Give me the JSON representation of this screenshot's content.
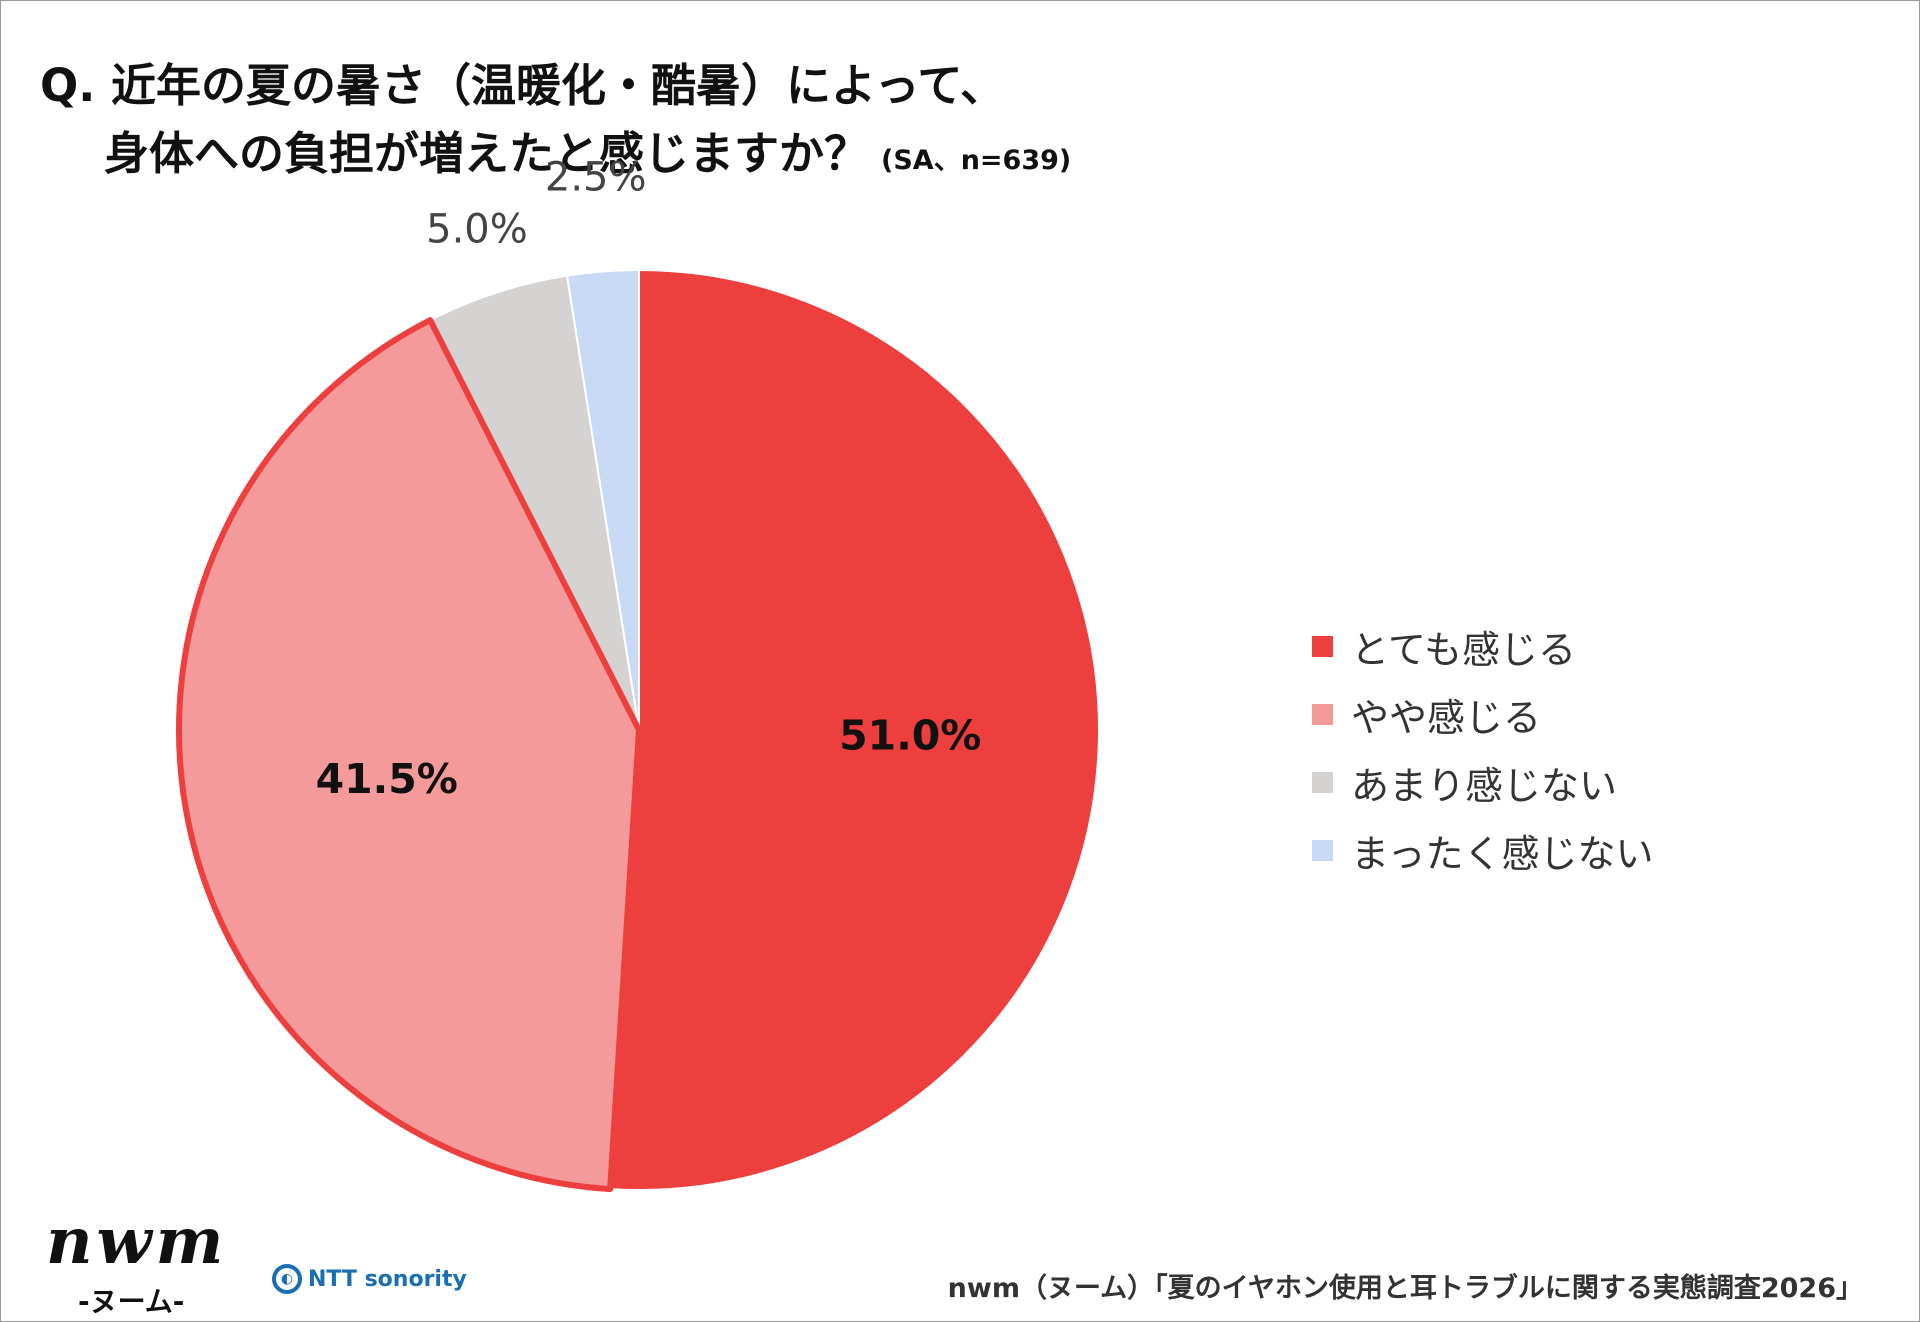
{
  "title": {
    "line1": "Q. 近年の夏の暑さ（温暖化・酷暑）によって、",
    "line2": "身体への負担が増えたと感じますか？",
    "note": "(SA、n=639)"
  },
  "chart_data": {
    "type": "pie",
    "categories": [
      "とても感じる",
      "やや感じる",
      "あまり感じない",
      "まったく感じない"
    ],
    "values": [
      51.0,
      41.5,
      5.0,
      2.5
    ],
    "labels": [
      "51.0%",
      "41.5%",
      "5.0%",
      "2.5%"
    ],
    "colors": [
      "#EE3F3F",
      "#F59A9A",
      "#D5D2D2",
      "#C8D9F5"
    ],
    "start": "12 o'clock, clockwise",
    "legend_position": "right"
  },
  "footer": {
    "logo_text": "nwm",
    "logo_sub": "-ヌーム-",
    "ntt_logo": "NTT sonority",
    "source": "nwm（ヌーム）「夏のイヤホン使用と耳トラブルに関する実態調査2026」"
  }
}
